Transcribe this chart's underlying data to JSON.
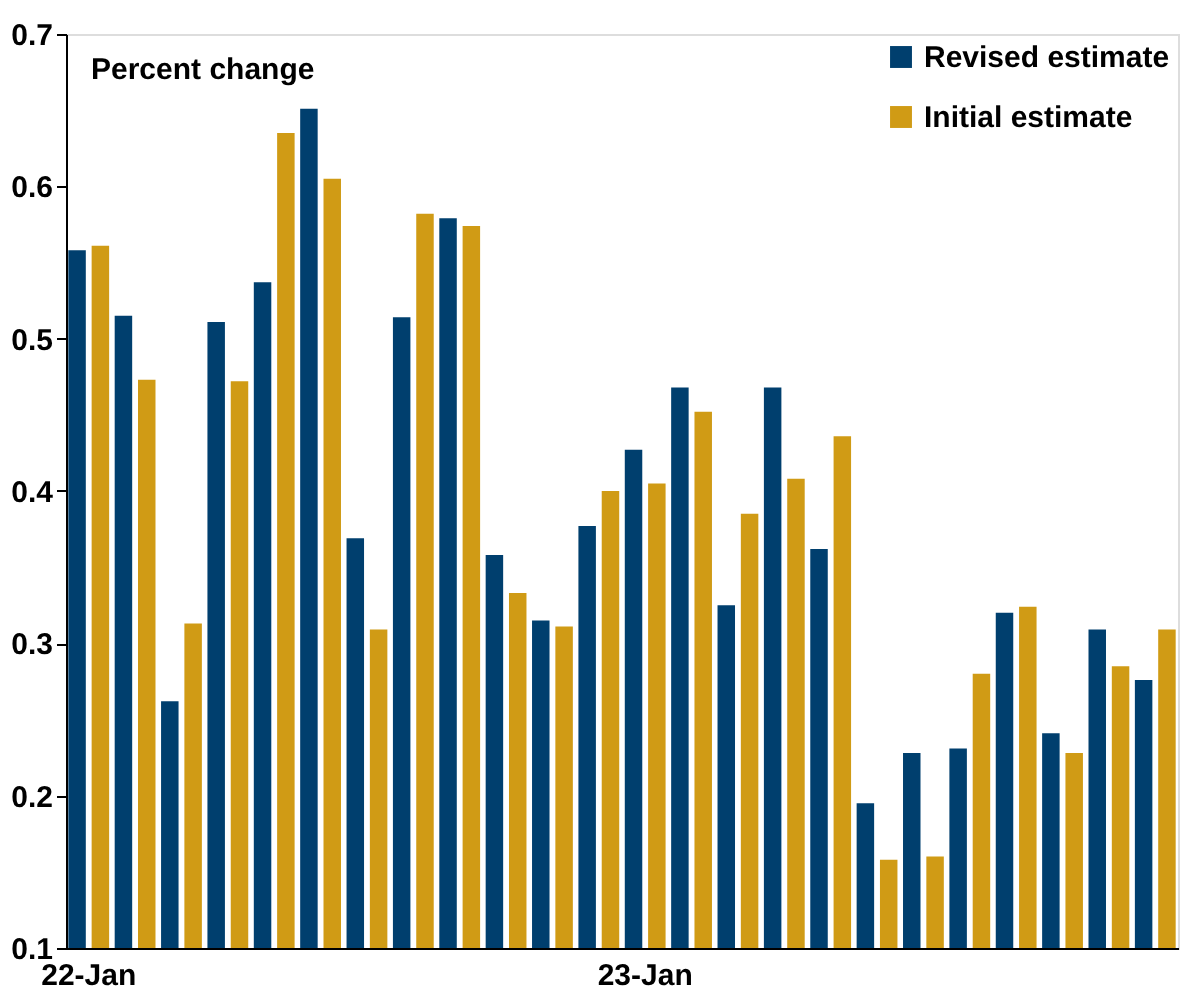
{
  "chart_data": {
    "type": "bar",
    "ylabel": "Percent change",
    "categories": [
      "22-Jan",
      null,
      null,
      null,
      null,
      null,
      null,
      null,
      null,
      null,
      null,
      null,
      "23-Jan",
      null,
      null,
      null,
      null,
      null,
      null,
      null,
      null,
      null,
      null,
      null
    ],
    "series": [
      {
        "name": "Revised estimate",
        "color": "#003f6e",
        "values": [
          0.558,
          0.515,
          0.262,
          0.511,
          0.537,
          0.651,
          0.369,
          0.514,
          0.579,
          0.358,
          0.315,
          0.377,
          0.427,
          0.468,
          0.325,
          0.468,
          0.362,
          0.195,
          0.228,
          0.231,
          0.32,
          0.241,
          0.309,
          0.276
        ]
      },
      {
        "name": "Initial estimate",
        "color": "#d09b15",
        "values": [
          0.561,
          0.473,
          0.313,
          0.472,
          0.635,
          0.605,
          0.309,
          0.582,
          0.574,
          0.333,
          0.311,
          0.4,
          0.405,
          0.452,
          0.385,
          0.408,
          0.436,
          0.158,
          0.16,
          0.28,
          0.324,
          0.228,
          0.285,
          0.309
        ]
      }
    ],
    "ylim": [
      0.1,
      0.7
    ],
    "yticks": [
      0.1,
      0.2,
      0.3,
      0.4,
      0.5,
      0.6,
      0.7
    ],
    "grid": false,
    "legend": "top right"
  }
}
